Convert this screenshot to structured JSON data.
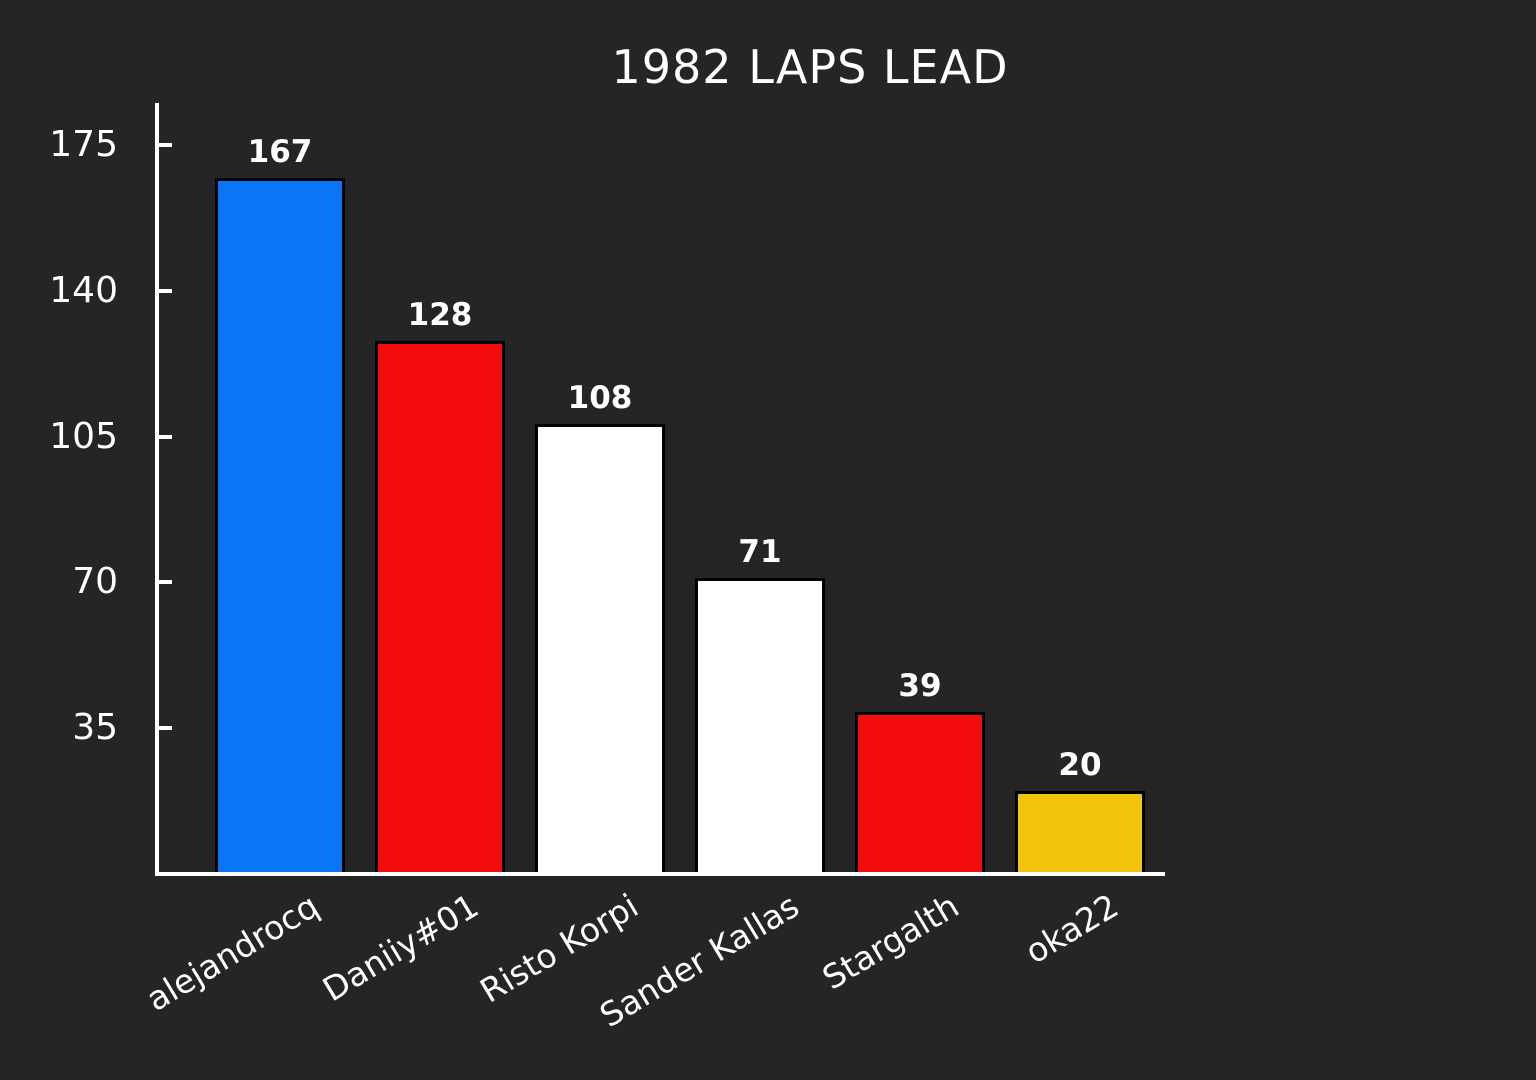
{
  "chart_data": {
    "type": "bar",
    "title": "1982 LAPS LEAD",
    "categories": [
      "alejandrocq",
      "Daniiy#01",
      "Risto Korpi",
      "Sander Kallas",
      "Stargalth",
      "oka22"
    ],
    "values": [
      167,
      128,
      108,
      71,
      39,
      20
    ],
    "bar_colors": [
      "#0b76f5",
      "#f20c0c",
      "#ffffff",
      "#ffffff",
      "#f20c0c",
      "#f2c40d"
    ],
    "y_ticks": [
      35,
      70,
      105,
      140,
      175
    ],
    "ylim": [
      0,
      185
    ],
    "xlabel": "",
    "ylabel": "",
    "grid": false,
    "legend": false,
    "value_labels_shown": true,
    "colors": {
      "background": "#252525",
      "axis": "#ffffff",
      "text": "#ffffff",
      "bar_edge": "#000000"
    }
  }
}
